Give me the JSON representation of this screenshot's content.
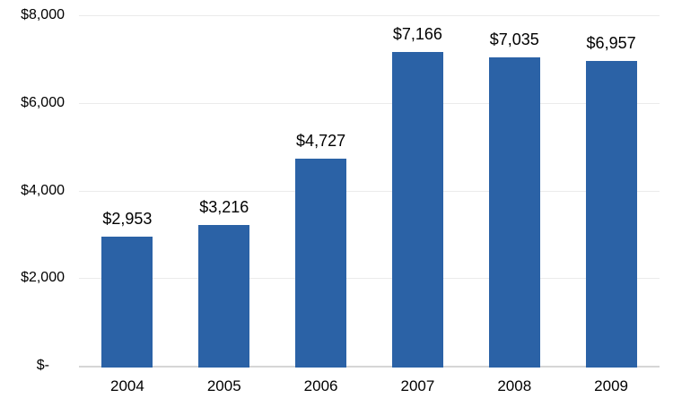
{
  "chart_data": {
    "type": "bar",
    "title": "",
    "xlabel": "",
    "ylabel": "",
    "categories": [
      "2004",
      "2005",
      "2006",
      "2007",
      "2008",
      "2009"
    ],
    "values": [
      2953,
      3216,
      4727,
      7166,
      7035,
      6957
    ],
    "value_labels": [
      "$2,953",
      "$3,216",
      "$4,727",
      "$7,166",
      "$7,035",
      "$6,957"
    ],
    "y_ticks": [
      {
        "value": 8000,
        "label": "$8,000"
      },
      {
        "value": 6000,
        "label": "$6,000"
      },
      {
        "value": 4000,
        "label": "$4,000"
      },
      {
        "value": 2000,
        "label": "$2,000"
      },
      {
        "value": 0,
        "label": "$-"
      }
    ],
    "ylim": [
      0,
      8000
    ],
    "grid": "horizontal",
    "legend": "none",
    "colors": {
      "bar": "#2B62A6",
      "gridline": "#EBEBEB",
      "axis_line": "#D6D6D6",
      "text": "#000000",
      "background": "#FFFFFF"
    }
  }
}
